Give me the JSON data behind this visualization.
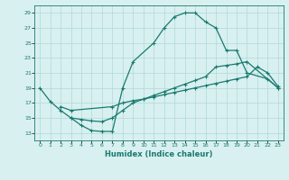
{
  "line1_x": [
    0,
    1,
    2,
    3,
    4,
    5,
    6,
    7,
    8,
    9,
    11,
    12,
    13,
    14,
    15,
    16,
    17,
    18,
    19,
    20,
    22,
    23
  ],
  "line1_y": [
    19,
    17.2,
    16,
    15,
    14,
    13.3,
    13.2,
    13.2,
    19,
    22.5,
    25,
    27,
    28.5,
    29,
    29,
    27.8,
    27,
    24,
    24,
    21,
    20.2,
    19
  ],
  "line2_x": [
    2,
    3,
    7,
    8,
    9,
    10,
    11,
    12,
    13,
    14,
    15,
    16,
    17,
    18,
    19,
    20,
    21,
    22,
    23
  ],
  "line2_y": [
    16.5,
    16,
    16.5,
    17,
    17.3,
    17.5,
    17.8,
    18.1,
    18.4,
    18.7,
    19.0,
    19.3,
    19.6,
    19.9,
    20.2,
    20.5,
    21.8,
    21.0,
    19.2
  ],
  "line3_x": [
    3,
    4,
    5,
    6,
    7,
    8,
    9,
    10,
    11,
    12,
    13,
    14,
    15,
    16,
    17,
    18,
    19,
    20,
    23
  ],
  "line3_y": [
    15,
    14.8,
    14.6,
    14.5,
    15,
    16,
    17,
    17.5,
    18,
    18.5,
    19,
    19.5,
    20,
    20.5,
    21.8,
    22,
    22.2,
    22.5,
    19
  ],
  "color": "#1a7a6e",
  "bg_color": "#d8f0f0",
  "grid_color": "#b0d8d8",
  "xlabel": "Humidex (Indice chaleur)",
  "xlim": [
    -0.5,
    23.5
  ],
  "ylim": [
    12,
    30
  ],
  "yticks": [
    13,
    15,
    17,
    19,
    21,
    23,
    25,
    27,
    29
  ],
  "xticks": [
    0,
    1,
    2,
    3,
    4,
    5,
    6,
    7,
    8,
    9,
    10,
    11,
    12,
    13,
    14,
    15,
    16,
    17,
    18,
    19,
    20,
    21,
    22,
    23
  ],
  "marker": "+",
  "markersize": 3,
  "linewidth": 0.9
}
